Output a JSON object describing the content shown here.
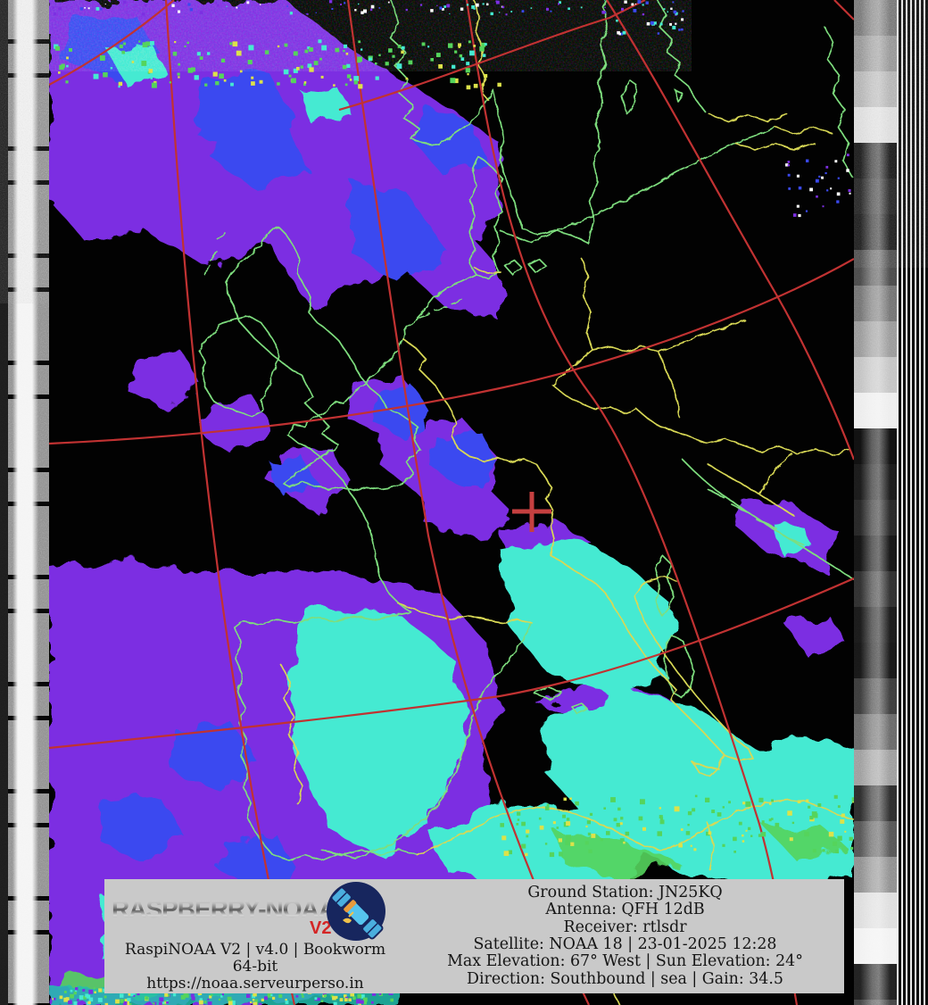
{
  "footer": {
    "brand": "RASPBERRY-NOAA",
    "brand_version": "V2",
    "left_line1": "RaspiNOAA V2 | v4.0 | Bookworm 64-bit",
    "left_line2": "https://noaa.serveurperso.in",
    "info": {
      "ground_station": "Ground Station: JN25KQ",
      "antenna": "Antenna: QFH 12dB",
      "receiver": "Receiver: rtlsdr",
      "satellite": "Satellite: NOAA 18 | 23-01-2025 12:28",
      "elevation": "Max Elevation: 67° West | Sun Elevation: 24°",
      "direction": "Direction: Southbound | sea | Gain: 34.5"
    }
  },
  "colors": {
    "grid": "#c13232",
    "border": "#d8d855",
    "coast": "#7ede7e",
    "cloudPurple": "#7c2fe2",
    "cloudBlue": "#3b49f0",
    "cloudCyan": "#45ead2",
    "cloudGreen": "#55d45c",
    "cloudYellow": "#dce24a",
    "footerBg": "#c9c9c9",
    "badgeRed": "#d42525",
    "marker": "#c54040"
  }
}
